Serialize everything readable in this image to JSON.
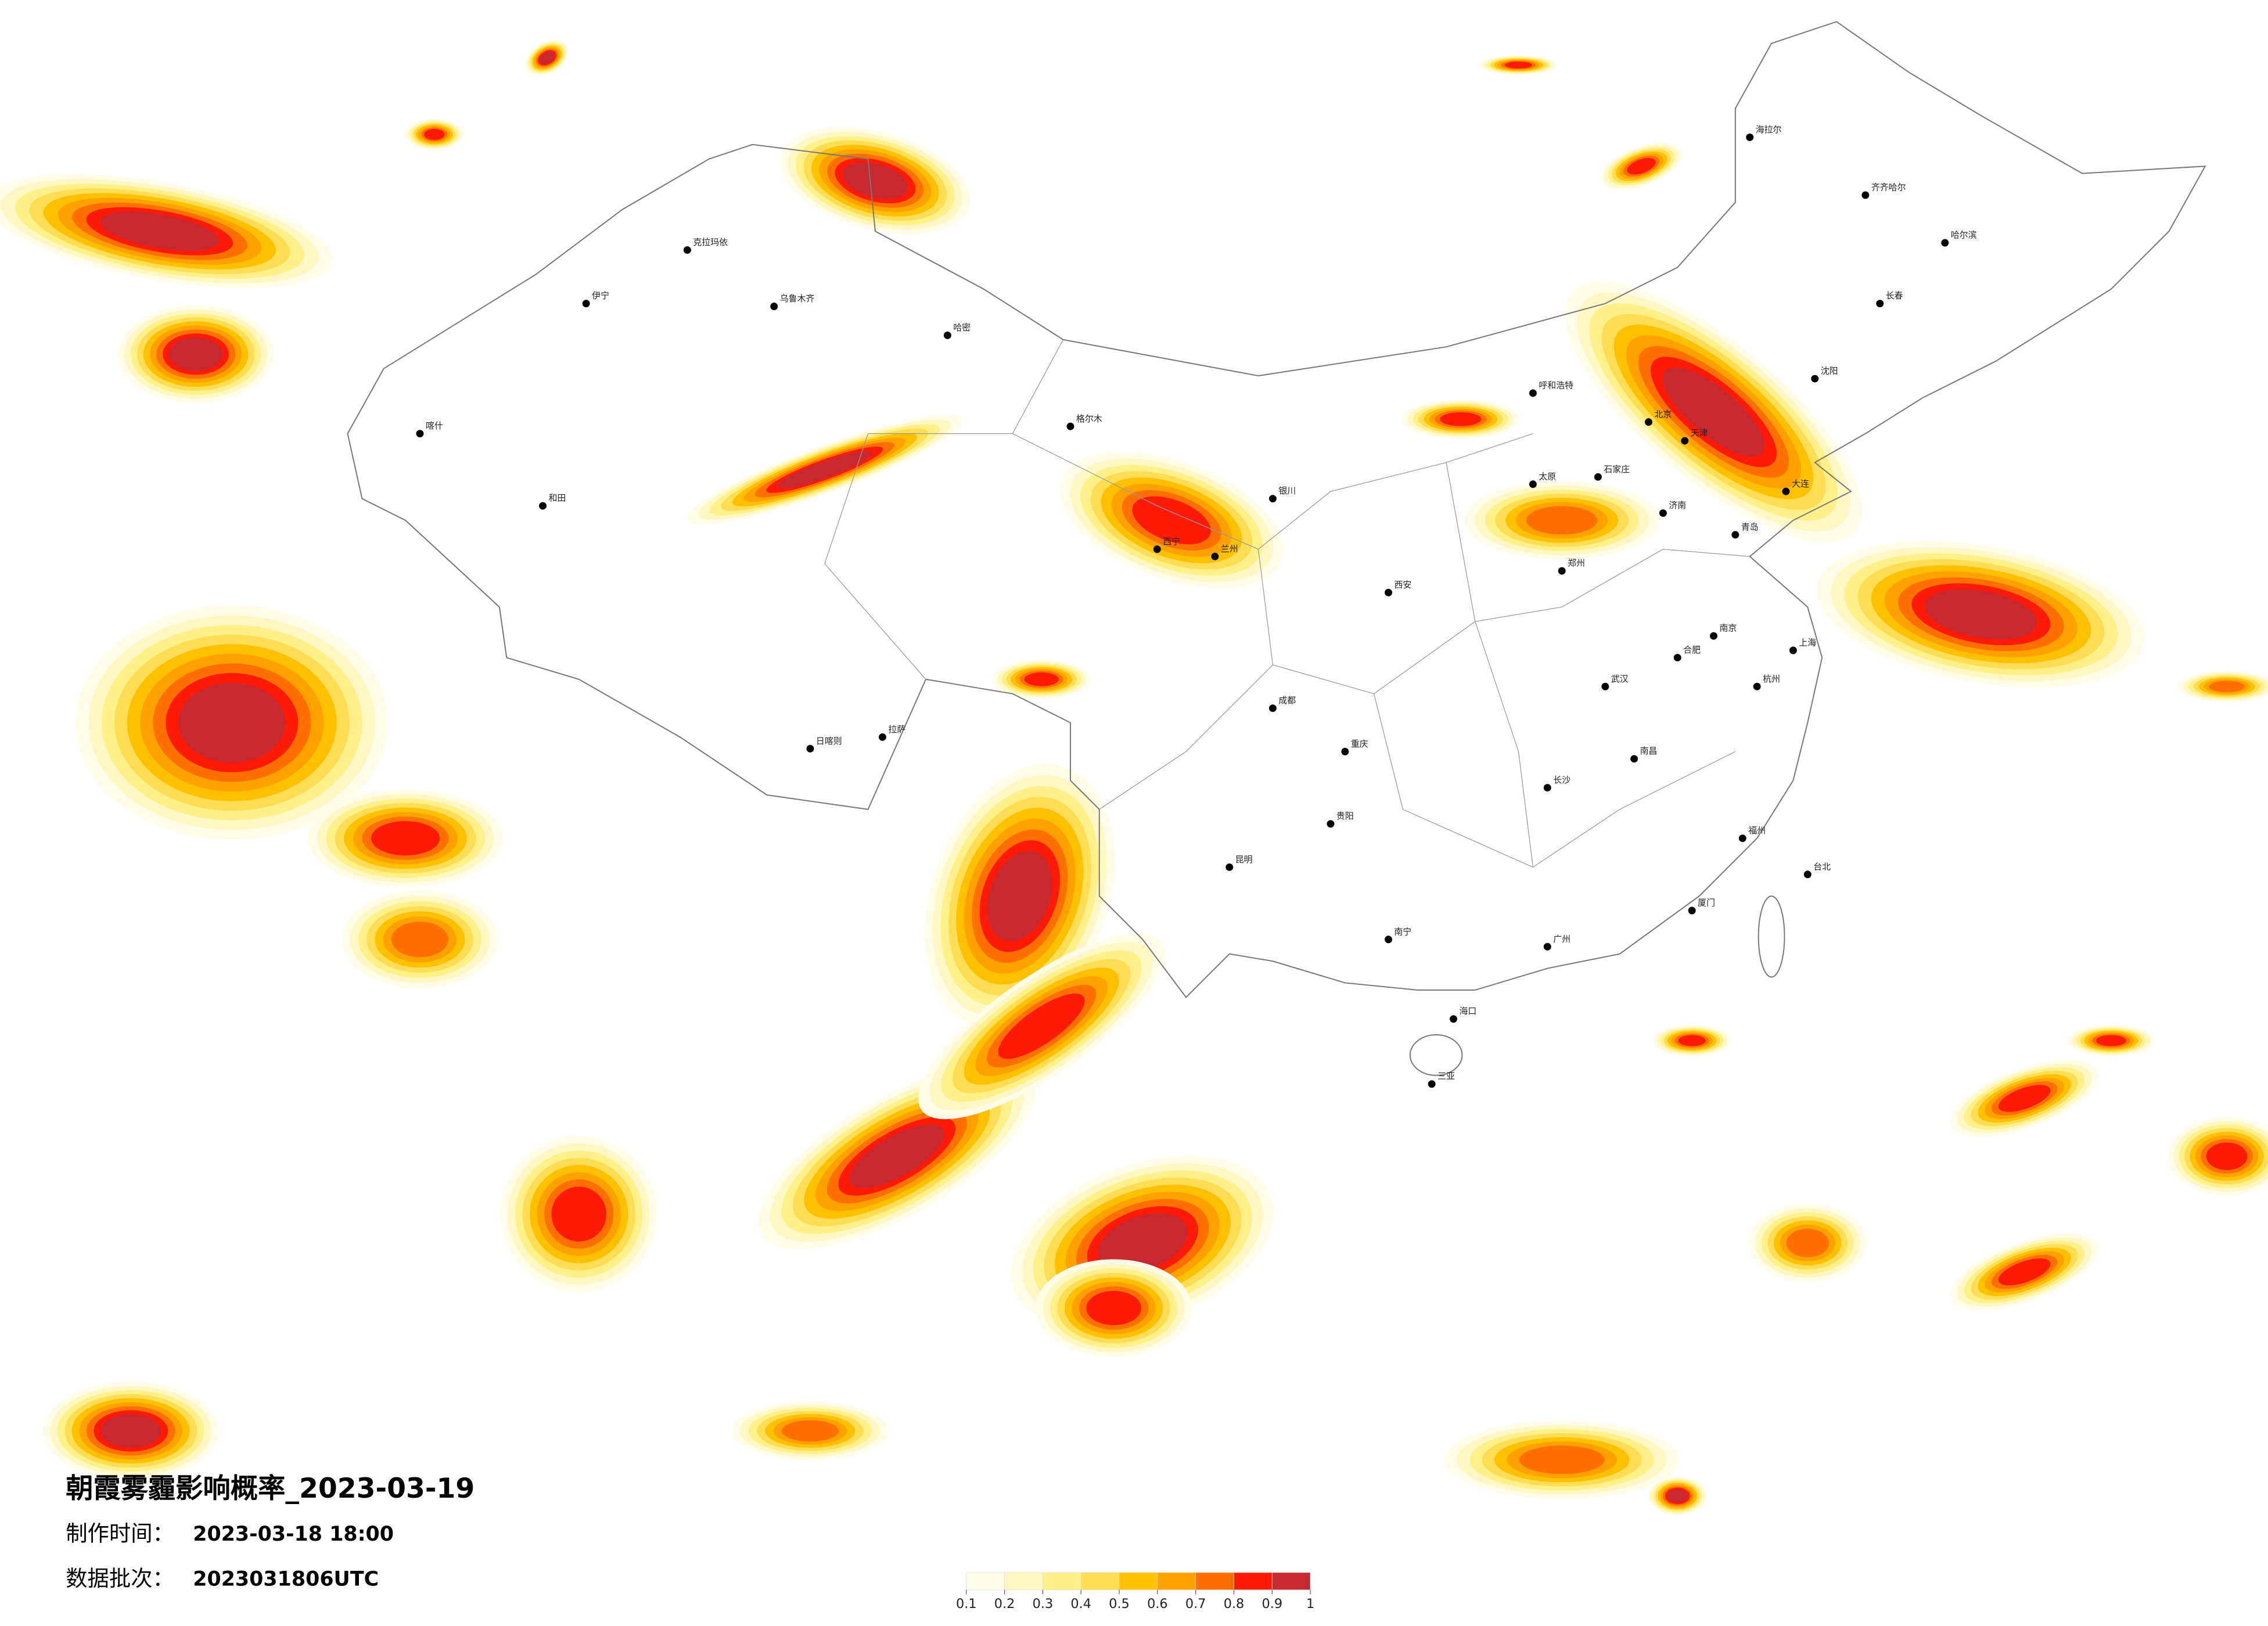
{
  "map": {
    "title": "朝霞雾霾影响概率_2023-03-19",
    "info": [
      {
        "label": "制作时间：",
        "value": "2023-03-18 18:00"
      },
      {
        "label": "数据批次：",
        "value": "2023031806UTC"
      }
    ],
    "legend": {
      "colors": [
        "#fffde8",
        "#fff8c4",
        "#fff08a",
        "#ffdd55",
        "#ffc000",
        "#ffa200",
        "#ff7000",
        "#ff1a0a",
        "#c62a30"
      ],
      "ticks": [
        0.1,
        0.2,
        0.3,
        0.4,
        0.5,
        0.6,
        0.7,
        0.8,
        0.9,
        1
      ]
    },
    "cities": [
      "北京",
      "天津",
      "石家庄",
      "太原",
      "呼和浩特",
      "沈阳",
      "长春",
      "哈尔滨",
      "济南",
      "郑州",
      "西安",
      "兰州",
      "西宁",
      "银川",
      "乌鲁木齐",
      "拉萨",
      "成都",
      "重庆",
      "贵阳",
      "昆明",
      "南宁",
      "广州",
      "长沙",
      "武汉",
      "南昌",
      "杭州",
      "上海",
      "南京",
      "合肥",
      "福州",
      "海口",
      "台北",
      "喀什",
      "和田",
      "伊宁",
      "克拉玛依",
      "哈密",
      "格尔木",
      "日喀则",
      "海拉尔",
      "齐齐哈尔",
      "大连",
      "青岛",
      "厦门",
      "三亚"
    ]
  }
}
